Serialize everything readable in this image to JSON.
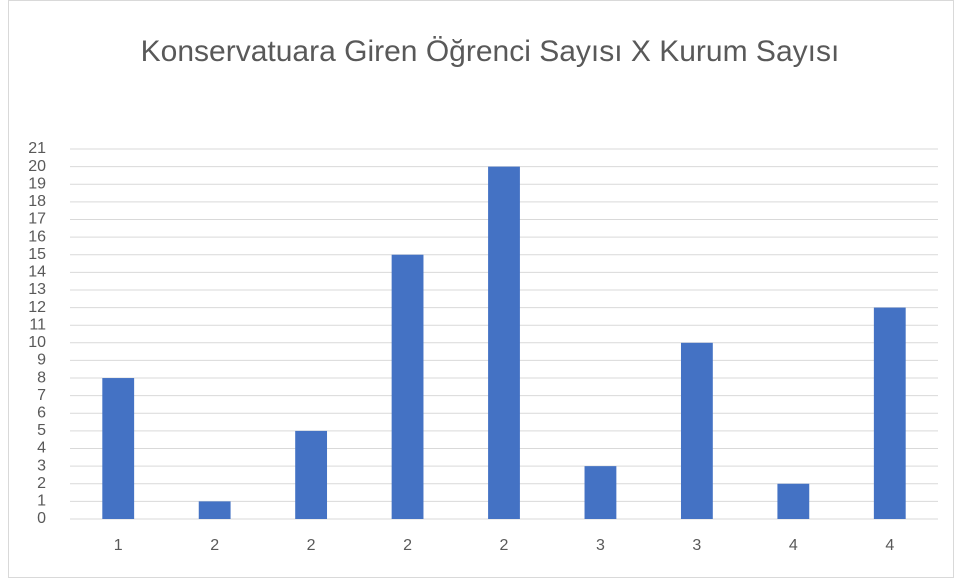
{
  "chart_data": {
    "type": "bar",
    "title": "Konservatuara Giren Öğrenci Sayısı X Kurum Sayısı",
    "categories": [
      "1",
      "2",
      "2",
      "2",
      "2",
      "3",
      "3",
      "4",
      "4"
    ],
    "values": [
      8,
      1,
      5,
      15,
      20,
      3,
      10,
      2,
      12
    ],
    "color": "#4472c4",
    "ylim": [
      0,
      21
    ],
    "yticks": [
      0,
      1,
      2,
      3,
      4,
      5,
      6,
      7,
      8,
      9,
      10,
      11,
      12,
      13,
      14,
      15,
      16,
      17,
      18,
      19,
      20,
      21
    ],
    "grid": true
  }
}
